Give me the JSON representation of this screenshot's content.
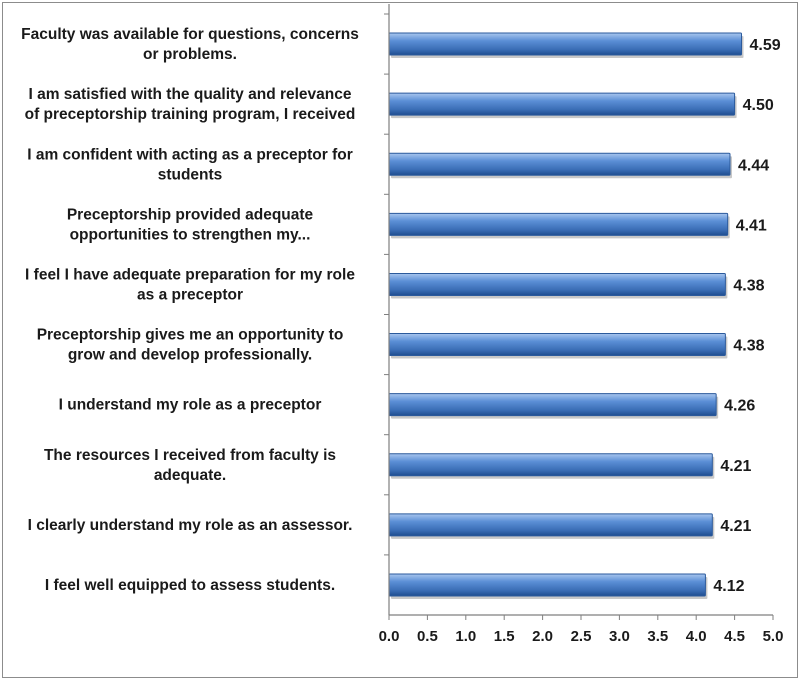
{
  "chart_data": {
    "type": "bar",
    "orientation": "horizontal",
    "title": "",
    "xlabel": "",
    "ylabel": "",
    "xlim": [
      0,
      5
    ],
    "x_ticks": [
      "0.0",
      "0.5",
      "1.0",
      "1.5",
      "2.0",
      "2.5",
      "3.0",
      "3.5",
      "4.0",
      "4.5",
      "5.0"
    ],
    "grid": false,
    "legend": "none",
    "bar_color": "#3f78c4",
    "categories": [
      [
        "Faculty was available for questions, concerns",
        "or problems."
      ],
      [
        "I am satisfied with the quality and relevance",
        "of preceptorship training program, I received"
      ],
      [
        "I am confident with acting as a preceptor for",
        "students"
      ],
      [
        "Preceptorship provided adequate",
        "opportunities to strengthen my..."
      ],
      [
        "I feel I have adequate preparation for my role",
        "as a preceptor"
      ],
      [
        "Preceptorship gives me an opportunity to",
        "grow and develop professionally."
      ],
      [
        "I understand my role as a preceptor"
      ],
      [
        "The resources I received from faculty is",
        "adequate."
      ],
      [
        "I  clearly understand my role as an assessor."
      ],
      [
        "I feel well equipped to assess students."
      ]
    ],
    "values": [
      4.59,
      4.5,
      4.44,
      4.41,
      4.38,
      4.38,
      4.26,
      4.21,
      4.21,
      4.12
    ],
    "value_labels": [
      "4.59",
      "4.50",
      "4.44",
      "4.41",
      "4.38",
      "4.38",
      "4.26",
      "4.21",
      "4.21",
      "4.12"
    ]
  }
}
